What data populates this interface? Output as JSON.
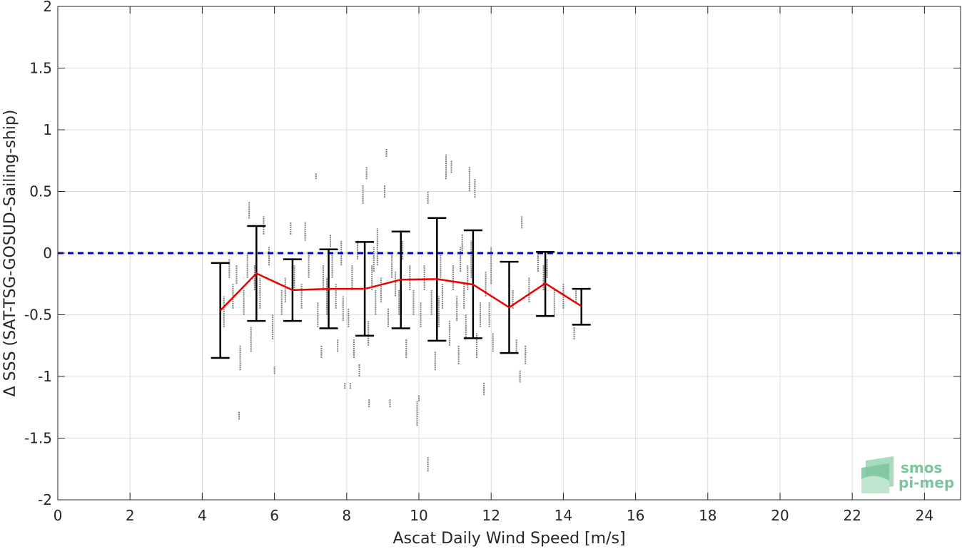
{
  "chart_data": {
    "type": "scatter",
    "xlabel": "Ascat Daily Wind Speed [m/s]",
    "ylabel": "Δ SSS (SAT-TSG-GOSUD-Sailing-ship)",
    "xlim": [
      0,
      25
    ],
    "ylim": [
      -2,
      2
    ],
    "xticks": [
      0,
      2,
      4,
      6,
      8,
      10,
      12,
      14,
      16,
      18,
      20,
      22,
      24
    ],
    "yticks": [
      -2,
      -1.5,
      -1,
      -0.5,
      0,
      0.5,
      1,
      1.5,
      2
    ],
    "grid": true,
    "reference_line": {
      "y": 0,
      "color": "#0000cc",
      "style": "dashed"
    },
    "scatter_color": "#808080",
    "scatter_segments": [
      [
        4.6,
        -0.6,
        -0.35
      ],
      [
        4.75,
        -0.2,
        -0.05
      ],
      [
        4.85,
        -0.45,
        -0.25
      ],
      [
        4.95,
        -0.25,
        -0.1
      ],
      [
        5.05,
        -0.95,
        -0.75
      ],
      [
        5.02,
        -1.35,
        -1.28
      ],
      [
        5.15,
        -0.5,
        -0.3
      ],
      [
        5.25,
        -0.2,
        0.0
      ],
      [
        5.3,
        0.28,
        0.42
      ],
      [
        5.35,
        -0.8,
        -0.6
      ],
      [
        5.45,
        -0.3,
        -0.1
      ],
      [
        5.6,
        -0.45,
        -0.2
      ],
      [
        5.7,
        0.15,
        0.3
      ],
      [
        5.85,
        -0.1,
        0.05
      ],
      [
        5.95,
        -0.7,
        -0.5
      ],
      [
        6.0,
        -0.98,
        -0.92
      ],
      [
        6.2,
        -0.5,
        -0.3
      ],
      [
        6.3,
        -0.4,
        -0.2
      ],
      [
        6.45,
        0.15,
        0.25
      ],
      [
        6.55,
        -0.3,
        -0.1
      ],
      [
        6.75,
        -0.45,
        -0.25
      ],
      [
        6.85,
        0.1,
        0.25
      ],
      [
        6.95,
        -0.2,
        0.0
      ],
      [
        7.15,
        0.6,
        0.65
      ],
      [
        7.2,
        -0.6,
        -0.4
      ],
      [
        7.3,
        -0.85,
        -0.75
      ],
      [
        7.35,
        -0.3,
        -0.1
      ],
      [
        7.45,
        -0.5,
        -0.2
      ],
      [
        7.55,
        0.05,
        0.15
      ],
      [
        7.6,
        -0.2,
        0.0
      ],
      [
        7.7,
        -0.45,
        -0.25
      ],
      [
        7.75,
        -0.8,
        -0.7
      ],
      [
        7.85,
        -0.1,
        0.1
      ],
      [
        7.9,
        -0.55,
        -0.35
      ],
      [
        7.95,
        -1.1,
        -1.05
      ],
      [
        8.05,
        -0.6,
        -0.45
      ],
      [
        8.1,
        -1.1,
        -1.05
      ],
      [
        8.15,
        -0.3,
        -0.1
      ],
      [
        8.2,
        -0.85,
        -0.7
      ],
      [
        8.3,
        -0.05,
        0.1
      ],
      [
        8.35,
        -1.0,
        -0.9
      ],
      [
        8.45,
        0.4,
        0.55
      ],
      [
        8.5,
        -0.3,
        -0.05
      ],
      [
        8.55,
        0.6,
        0.7
      ],
      [
        8.6,
        -0.75,
        -0.55
      ],
      [
        8.62,
        -1.25,
        -1.18
      ],
      [
        8.7,
        -0.3,
        -0.1
      ],
      [
        8.75,
        -0.15,
        0.05
      ],
      [
        8.8,
        -0.5,
        -0.3
      ],
      [
        8.85,
        -0.1,
        0.2
      ],
      [
        8.95,
        -0.4,
        -0.2
      ],
      [
        9.05,
        0.45,
        0.55
      ],
      [
        9.1,
        0.78,
        0.85
      ],
      [
        9.15,
        -0.6,
        -0.45
      ],
      [
        9.2,
        -1.25,
        -1.18
      ],
      [
        9.25,
        -0.2,
        0.0
      ],
      [
        9.35,
        -0.35,
        -0.15
      ],
      [
        9.45,
        -0.5,
        -0.3
      ],
      [
        9.55,
        -0.05,
        0.1
      ],
      [
        9.65,
        -0.85,
        -0.7
      ],
      [
        9.75,
        -0.3,
        -0.1
      ],
      [
        9.85,
        -0.5,
        -0.3
      ],
      [
        9.95,
        -1.4,
        -1.2
      ],
      [
        10.0,
        -1.2,
        -1.15
      ],
      [
        10.05,
        -0.6,
        -0.4
      ],
      [
        10.15,
        -0.3,
        -0.1
      ],
      [
        10.25,
        -1.77,
        -1.65
      ],
      [
        10.25,
        0.4,
        0.5
      ],
      [
        10.35,
        -0.5,
        -0.3
      ],
      [
        10.45,
        -0.95,
        -0.8
      ],
      [
        10.55,
        -0.6,
        -0.35
      ],
      [
        10.6,
        -0.2,
        0.0
      ],
      [
        10.65,
        -0.45,
        -0.25
      ],
      [
        10.75,
        0.6,
        0.8
      ],
      [
        10.85,
        -0.75,
        -0.55
      ],
      [
        10.9,
        0.65,
        0.75
      ],
      [
        10.95,
        -0.3,
        -0.1
      ],
      [
        11.05,
        -0.55,
        -0.35
      ],
      [
        11.1,
        -0.9,
        -0.75
      ],
      [
        11.15,
        -0.15,
        0.05
      ],
      [
        11.2,
        0.0,
        0.15
      ],
      [
        11.25,
        -0.45,
        -0.25
      ],
      [
        11.3,
        -0.7,
        -0.5
      ],
      [
        11.35,
        -0.3,
        -0.1
      ],
      [
        11.4,
        0.5,
        0.7
      ],
      [
        11.45,
        -0.2,
        0.1
      ],
      [
        11.55,
        0.45,
        0.6
      ],
      [
        11.6,
        -0.85,
        -0.65
      ],
      [
        11.7,
        -0.6,
        -0.4
      ],
      [
        11.8,
        -1.15,
        -1.05
      ],
      [
        11.85,
        -0.35,
        -0.15
      ],
      [
        11.95,
        -0.6,
        -0.4
      ],
      [
        12.0,
        -0.25,
        0.05
      ],
      [
        12.05,
        -0.8,
        -0.65
      ],
      [
        12.6,
        -0.45,
        -0.3
      ],
      [
        12.7,
        -0.8,
        -0.7
      ],
      [
        12.8,
        -1.05,
        -0.95
      ],
      [
        12.85,
        0.2,
        0.3
      ],
      [
        12.95,
        -0.9,
        -0.75
      ],
      [
        13.05,
        -0.4,
        -0.2
      ],
      [
        13.3,
        -0.15,
        0.0
      ],
      [
        13.45,
        -0.3,
        -0.1
      ],
      [
        13.55,
        -0.2,
        -0.05
      ],
      [
        13.75,
        -0.5,
        -0.3
      ],
      [
        14.0,
        -0.45,
        -0.25
      ],
      [
        14.3,
        -0.7,
        -0.6
      ],
      [
        14.35,
        -0.4,
        -0.3
      ]
    ],
    "mean_line": {
      "color": "#ee0000",
      "x": [
        4.5,
        5.5,
        6.5,
        7.5,
        8.5,
        9.5,
        10.5,
        11.5,
        12.5,
        13.5,
        14.5
      ],
      "y": [
        -0.465,
        -0.165,
        -0.3,
        -0.29,
        -0.29,
        -0.215,
        -0.21,
        -0.255,
        -0.44,
        -0.245,
        -0.43
      ]
    },
    "error_bars": {
      "color": "#000000",
      "x": [
        4.5,
        5.5,
        6.5,
        7.5,
        8.5,
        9.5,
        10.5,
        11.5,
        12.5,
        13.5,
        14.5
      ],
      "low": [
        -0.85,
        -0.55,
        -0.55,
        -0.61,
        -0.67,
        -0.61,
        -0.71,
        -0.69,
        -0.81,
        -0.51,
        -0.58
      ],
      "high": [
        -0.08,
        0.22,
        -0.05,
        0.03,
        0.09,
        0.175,
        0.285,
        0.185,
        -0.07,
        0.01,
        -0.29
      ]
    }
  },
  "logo": {
    "line1": "smos",
    "line2": "pi-mep"
  }
}
